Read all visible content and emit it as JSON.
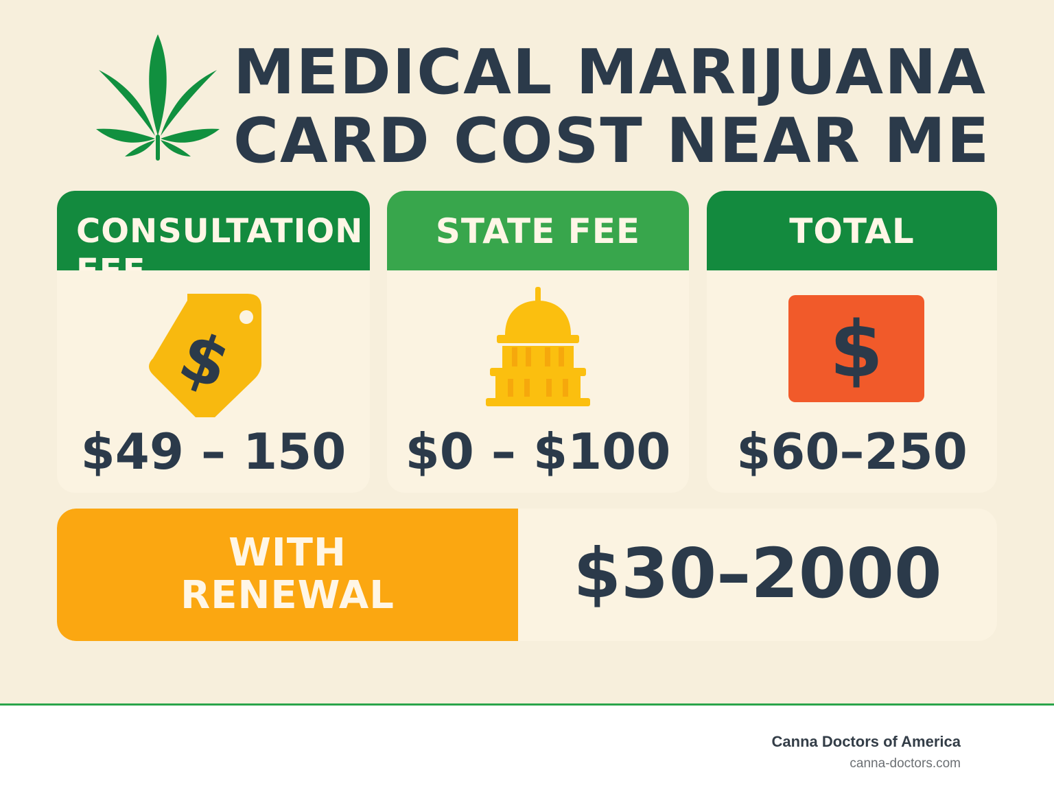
{
  "header": {
    "title_line1": "MEDICAL MARIJUANA",
    "title_line2": "CARD COST NEAR ME",
    "logo_icon": "cannabis-leaf-icon"
  },
  "cards": [
    {
      "label": "CONSULTATION FEE",
      "value": "$49 – 150",
      "icon": "price-tag-icon"
    },
    {
      "label": "STATE FEE",
      "value": "$0 – $100",
      "icon": "capitol-building-icon"
    },
    {
      "label": "TOTAL",
      "value": "$60–250",
      "icon": "dollar-card-icon"
    }
  ],
  "renewal": {
    "label_line1": "WITH",
    "label_line2": "RENEWAL",
    "value": "$30–2000"
  },
  "footer": {
    "brand": "Canna Doctors of America",
    "site": "canna-doctors.com"
  },
  "colors": {
    "background": "#f7efdc",
    "green_dark": "#138a3e",
    "green_light": "#38a64c",
    "orange": "#fba711",
    "gold": "#fbbf0f",
    "red_orange": "#f15a2a",
    "text": "#2b3a4a"
  }
}
